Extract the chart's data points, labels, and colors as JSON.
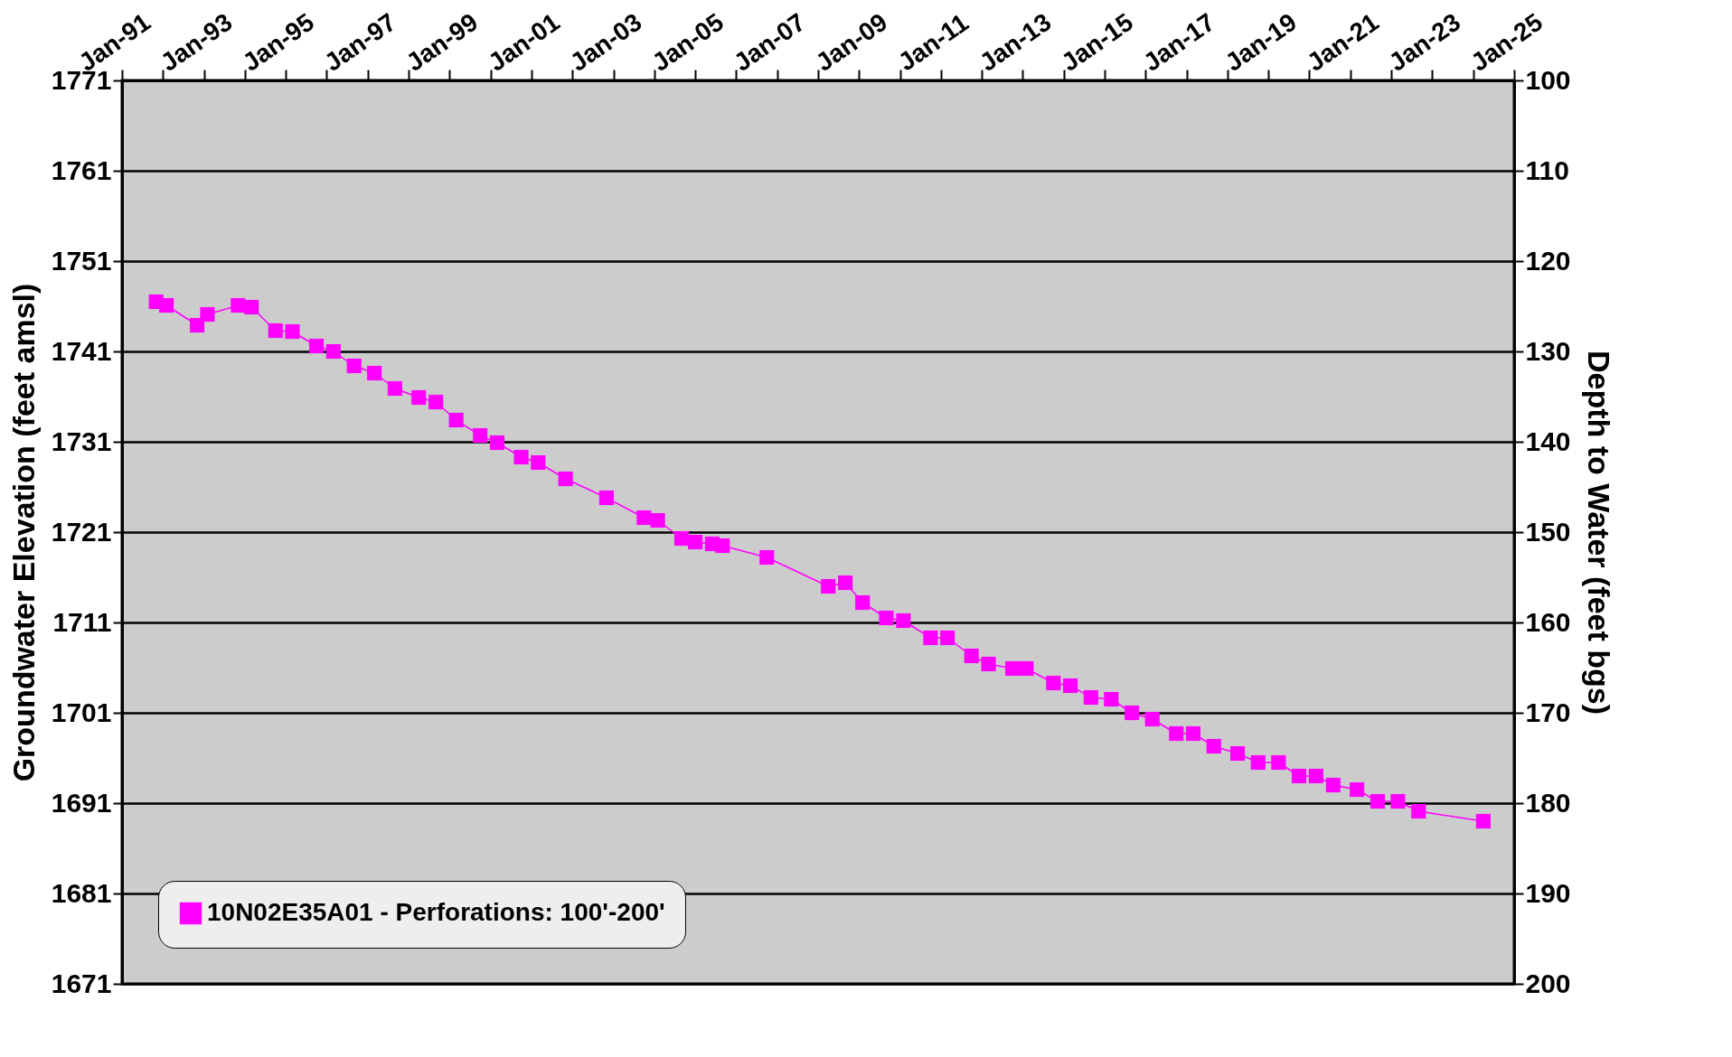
{
  "chart_data": {
    "type": "line",
    "xlabel": null,
    "ylabel": "Groundwater Elevation (feet amsl)",
    "y2label": "Depth to Water (feet bgs)",
    "x": [
      "1991-11",
      "1992-02",
      "1992-11",
      "1993-02",
      "1993-11",
      "1994-03",
      "1994-10",
      "1995-03",
      "1995-10",
      "1996-03",
      "1996-09",
      "1997-03",
      "1997-09",
      "1998-04",
      "1998-09",
      "1999-03",
      "1999-10",
      "2000-03",
      "2000-10",
      "2001-03",
      "2001-11",
      "2002-11",
      "2003-10",
      "2004-02",
      "2004-09",
      "2005-01",
      "2005-06",
      "2005-09",
      "2006-10",
      "2008-04",
      "2008-09",
      "2009-02",
      "2009-09",
      "2010-02",
      "2010-10",
      "2011-03",
      "2011-10",
      "2012-03",
      "2012-10",
      "2013-02",
      "2013-10",
      "2014-03",
      "2014-09",
      "2015-03",
      "2015-09",
      "2016-03",
      "2016-10",
      "2017-03",
      "2017-09",
      "2018-04",
      "2018-10",
      "2019-04",
      "2019-10",
      "2020-03",
      "2020-08",
      "2021-03",
      "2021-09",
      "2022-03",
      "2022-09",
      "2024-04"
    ],
    "series": [
      {
        "name": "10N02E35A01 - Perforations: 100'-200'",
        "color": "#ff00ff",
        "values": [
          1746.5,
          1746.1,
          1743.9,
          1745.1,
          1746.1,
          1745.9,
          1743.3,
          1743.2,
          1741.6,
          1741.0,
          1739.4,
          1738.6,
          1736.9,
          1735.9,
          1735.4,
          1733.4,
          1731.7,
          1730.9,
          1729.3,
          1728.7,
          1726.9,
          1724.8,
          1722.6,
          1722.3,
          1720.3,
          1719.9,
          1719.7,
          1719.5,
          1718.2,
          1715.0,
          1715.4,
          1713.2,
          1711.5,
          1711.2,
          1709.3,
          1709.3,
          1707.3,
          1706.4,
          1705.9,
          1705.9,
          1704.3,
          1704.0,
          1702.7,
          1702.5,
          1701.0,
          1700.3,
          1698.7,
          1698.7,
          1697.3,
          1696.5,
          1695.5,
          1695.5,
          1694.0,
          1694.0,
          1693.0,
          1692.5,
          1691.2,
          1691.2,
          1690.1,
          1689.0
        ]
      }
    ],
    "xlim": [
      "1991-01",
      "2025-01"
    ],
    "xticks": [
      {
        "value": "1991-01",
        "label": "Jan-91"
      },
      {
        "value": "1992-01",
        "label": null
      },
      {
        "value": "1993-01",
        "label": "Jan-93"
      },
      {
        "value": "1994-01",
        "label": null
      },
      {
        "value": "1995-01",
        "label": "Jan-95"
      },
      {
        "value": "1996-01",
        "label": null
      },
      {
        "value": "1997-01",
        "label": "Jan-97"
      },
      {
        "value": "1998-01",
        "label": null
      },
      {
        "value": "1999-01",
        "label": "Jan-99"
      },
      {
        "value": "2000-01",
        "label": null
      },
      {
        "value": "2001-01",
        "label": "Jan-01"
      },
      {
        "value": "2002-01",
        "label": null
      },
      {
        "value": "2003-01",
        "label": "Jan-03"
      },
      {
        "value": "2004-01",
        "label": null
      },
      {
        "value": "2005-01",
        "label": "Jan-05"
      },
      {
        "value": "2006-01",
        "label": null
      },
      {
        "value": "2007-01",
        "label": "Jan-07"
      },
      {
        "value": "2008-01",
        "label": null
      },
      {
        "value": "2009-01",
        "label": "Jan-09"
      },
      {
        "value": "2010-01",
        "label": null
      },
      {
        "value": "2011-01",
        "label": "Jan-11"
      },
      {
        "value": "2012-01",
        "label": null
      },
      {
        "value": "2013-01",
        "label": "Jan-13"
      },
      {
        "value": "2014-01",
        "label": null
      },
      {
        "value": "2015-01",
        "label": "Jan-15"
      },
      {
        "value": "2016-01",
        "label": null
      },
      {
        "value": "2017-01",
        "label": "Jan-17"
      },
      {
        "value": "2018-01",
        "label": null
      },
      {
        "value": "2019-01",
        "label": "Jan-19"
      },
      {
        "value": "2020-01",
        "label": null
      },
      {
        "value": "2021-01",
        "label": "Jan-21"
      },
      {
        "value": "2022-01",
        "label": null
      },
      {
        "value": "2023-01",
        "label": "Jan-23"
      },
      {
        "value": "2024-01",
        "label": null
      },
      {
        "value": "2025-01",
        "label": "Jan-25"
      }
    ],
    "ylim": [
      1671,
      1771
    ],
    "yticks": [
      1671,
      1681,
      1691,
      1701,
      1711,
      1721,
      1731,
      1741,
      1751,
      1761,
      1771
    ],
    "y2lim": [
      200,
      100
    ],
    "y2ticks": [
      100,
      110,
      120,
      130,
      140,
      150,
      160,
      170,
      180,
      190,
      200
    ],
    "grid": "y",
    "legend": "bottom left",
    "marker": "square",
    "line_style": "solid"
  }
}
